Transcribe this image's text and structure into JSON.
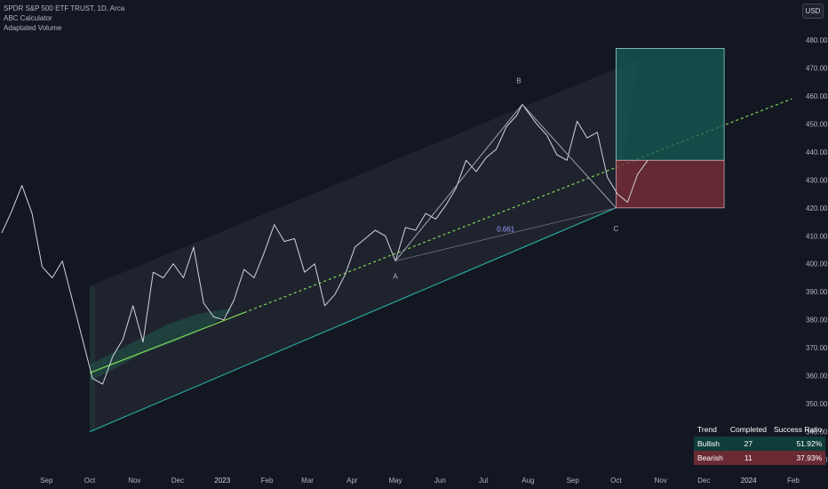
{
  "header": {
    "title": "SPDR S&P 500 ETF TRUST, 1D, Arca",
    "indicator1": "ABC Calculator",
    "indicator2": "Adaptated Volume"
  },
  "currency_button": "USD",
  "table": {
    "headers": [
      "Trend",
      "Completed",
      "Success Ratio"
    ],
    "rows": [
      {
        "trend": "Bullish",
        "completed": "27",
        "ratio": "51.92%"
      },
      {
        "trend": "Bearish",
        "completed": "11",
        "ratio": "37.93%"
      }
    ]
  },
  "colors": {
    "background": "#131722",
    "price_line": "#d1d4dc",
    "channel_fill": "#2a2e39",
    "midline": "#7ed957",
    "lower_line": "#26a69a",
    "target_box": "#155e56",
    "stop_box": "#7a2e38"
  },
  "chart_data": {
    "type": "line",
    "y_axis": {
      "ticks": [
        330,
        340,
        350,
        360,
        370,
        380,
        390,
        400,
        410,
        420,
        430,
        440,
        450,
        460,
        470,
        480
      ],
      "ylim": [
        326,
        484
      ]
    },
    "x_axis": {
      "labels": [
        "Sep",
        "Oct",
        "Nov",
        "Dec",
        "2023",
        "Feb",
        "Mar",
        "Apr",
        "May",
        "Jun",
        "Jul",
        "Aug",
        "Sep",
        "Oct",
        "Nov",
        "Dec",
        "2024",
        "Feb"
      ]
    },
    "annotations": {
      "A": {
        "label": "A",
        "date": "2023-05-01",
        "price": 401
      },
      "B": {
        "label": "B",
        "date": "2023-07-28",
        "price": 457
      },
      "C": {
        "label": "C",
        "date": "2023-10-01",
        "price": 420
      },
      "ratio": "0.661"
    },
    "channel": {
      "lower_start": [
        "2022-10-01",
        340
      ],
      "lower_end": [
        "2023-10-01",
        420
      ],
      "upper_start": [
        "2022-10-01",
        392
      ],
      "upper_end": [
        "2023-10-16",
        473
      ],
      "mid_start": [
        "2022-10-01",
        361
      ],
      "mid_end": [
        "2024-01-31",
        459
      ]
    },
    "position_box": {
      "start": "2023-10-01",
      "end": "2023-12-15",
      "entry": 437,
      "target": 477,
      "stop": 420
    },
    "series": [
      {
        "points": [
          [
            "2022-08-01",
            411
          ],
          [
            "2022-08-08",
            419
          ],
          [
            "2022-08-15",
            428
          ],
          [
            "2022-08-22",
            418
          ],
          [
            "2022-08-29",
            399
          ],
          [
            "2022-09-05",
            395
          ],
          [
            "2022-09-12",
            401
          ],
          [
            "2022-09-19",
            387
          ],
          [
            "2022-09-26",
            373
          ],
          [
            "2022-10-03",
            359
          ],
          [
            "2022-10-10",
            357
          ],
          [
            "2022-10-17",
            367
          ],
          [
            "2022-10-24",
            373
          ],
          [
            "2022-10-31",
            385
          ],
          [
            "2022-11-07",
            372
          ],
          [
            "2022-11-14",
            397
          ],
          [
            "2022-11-21",
            395
          ],
          [
            "2022-11-28",
            400
          ],
          [
            "2022-12-05",
            395
          ],
          [
            "2022-12-12",
            406
          ],
          [
            "2022-12-19",
            386
          ],
          [
            "2022-12-26",
            381
          ],
          [
            "2023-01-02",
            380
          ],
          [
            "2023-01-09",
            387
          ],
          [
            "2023-01-16",
            398
          ],
          [
            "2023-01-23",
            395
          ],
          [
            "2023-01-30",
            404
          ],
          [
            "2023-02-06",
            414
          ],
          [
            "2023-02-13",
            408
          ],
          [
            "2023-02-20",
            409
          ],
          [
            "2023-02-27",
            397
          ],
          [
            "2023-03-06",
            400
          ],
          [
            "2023-03-13",
            385
          ],
          [
            "2023-03-20",
            389
          ],
          [
            "2023-03-27",
            396
          ],
          [
            "2023-04-03",
            406
          ],
          [
            "2023-04-10",
            409
          ],
          [
            "2023-04-17",
            412
          ],
          [
            "2023-04-24",
            410
          ],
          [
            "2023-05-01",
            401
          ],
          [
            "2023-05-08",
            413
          ],
          [
            "2023-05-15",
            412
          ],
          [
            "2023-05-22",
            418
          ],
          [
            "2023-05-29",
            416
          ],
          [
            "2023-06-05",
            421
          ],
          [
            "2023-06-12",
            427
          ],
          [
            "2023-06-19",
            437
          ],
          [
            "2023-06-26",
            433
          ],
          [
            "2023-07-03",
            438
          ],
          [
            "2023-07-10",
            441
          ],
          [
            "2023-07-17",
            449
          ],
          [
            "2023-07-24",
            453
          ],
          [
            "2023-07-28",
            457
          ],
          [
            "2023-08-07",
            450
          ],
          [
            "2023-08-14",
            446
          ],
          [
            "2023-08-21",
            439
          ],
          [
            "2023-08-28",
            437
          ],
          [
            "2023-09-04",
            451
          ],
          [
            "2023-09-11",
            445
          ],
          [
            "2023-09-18",
            447
          ],
          [
            "2023-09-25",
            431
          ],
          [
            "2023-10-02",
            425
          ],
          [
            "2023-10-09",
            422
          ],
          [
            "2023-10-16",
            432
          ],
          [
            "2023-10-23",
            437
          ]
        ]
      }
    ]
  }
}
